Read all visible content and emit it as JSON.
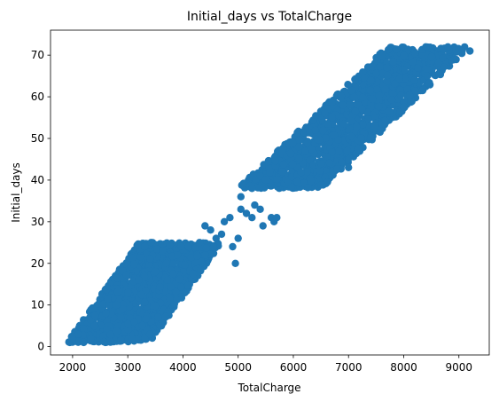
{
  "chart_data": {
    "type": "scatter",
    "title": "Initial_days vs TotalCharge",
    "xlabel": "TotalCharge",
    "ylabel": "Initial_days",
    "xlim": [
      1600,
      9550
    ],
    "ylim": [
      -2,
      76
    ],
    "xticks": [
      2000,
      3000,
      4000,
      5000,
      6000,
      7000,
      8000,
      9000
    ],
    "yticks": [
      0,
      10,
      20,
      30,
      40,
      50,
      60,
      70
    ],
    "grid": false,
    "legend": "none",
    "marker_color": "#1f77b4",
    "clusters": [
      {
        "name": "",
        "x_range": [
          1900,
          4700
        ],
        "y_range": [
          1,
          25
        ],
        "band_width": 1500
      },
      {
        "name": "",
        "x_range": [
          5000,
          9200
        ],
        "y_range": [
          38,
          72
        ],
        "band_width": 1500
      }
    ],
    "points": [
      {
        "x": 1950,
        "y": 1
      },
      {
        "x": 2000,
        "y": 2
      },
      {
        "x": 2100,
        "y": 3
      },
      {
        "x": 2200,
        "y": 1
      },
      {
        "x": 2400,
        "y": 5
      },
      {
        "x": 2600,
        "y": 8
      },
      {
        "x": 2800,
        "y": 10
      },
      {
        "x": 3000,
        "y": 13
      },
      {
        "x": 3200,
        "y": 16
      },
      {
        "x": 3400,
        "y": 3
      },
      {
        "x": 3500,
        "y": 18
      },
      {
        "x": 3700,
        "y": 20
      },
      {
        "x": 3900,
        "y": 22
      },
      {
        "x": 4100,
        "y": 24
      },
      {
        "x": 4300,
        "y": 25
      },
      {
        "x": 4400,
        "y": 29
      },
      {
        "x": 4500,
        "y": 28
      },
      {
        "x": 4600,
        "y": 26
      },
      {
        "x": 4700,
        "y": 27
      },
      {
        "x": 4750,
        "y": 30
      },
      {
        "x": 4850,
        "y": 31
      },
      {
        "x": 4900,
        "y": 24
      },
      {
        "x": 4950,
        "y": 20
      },
      {
        "x": 5000,
        "y": 26
      },
      {
        "x": 5050,
        "y": 33
      },
      {
        "x": 5150,
        "y": 32
      },
      {
        "x": 5250,
        "y": 31
      },
      {
        "x": 5300,
        "y": 34
      },
      {
        "x": 5400,
        "y": 33
      },
      {
        "x": 5450,
        "y": 29
      },
      {
        "x": 5600,
        "y": 31
      },
      {
        "x": 5650,
        "y": 30
      },
      {
        "x": 5700,
        "y": 31
      },
      {
        "x": 5050,
        "y": 36
      },
      {
        "x": 5250,
        "y": 38
      },
      {
        "x": 5500,
        "y": 40
      },
      {
        "x": 5800,
        "y": 42
      },
      {
        "x": 6100,
        "y": 48
      },
      {
        "x": 6400,
        "y": 52
      },
      {
        "x": 6700,
        "y": 55
      },
      {
        "x": 6900,
        "y": 58
      },
      {
        "x": 7100,
        "y": 60
      },
      {
        "x": 7400,
        "y": 64
      },
      {
        "x": 7700,
        "y": 67
      },
      {
        "x": 8000,
        "y": 70
      },
      {
        "x": 8400,
        "y": 72
      },
      {
        "x": 8800,
        "y": 72
      },
      {
        "x": 9200,
        "y": 71
      },
      {
        "x": 7000,
        "y": 43
      },
      {
        "x": 6500,
        "y": 44
      }
    ]
  }
}
